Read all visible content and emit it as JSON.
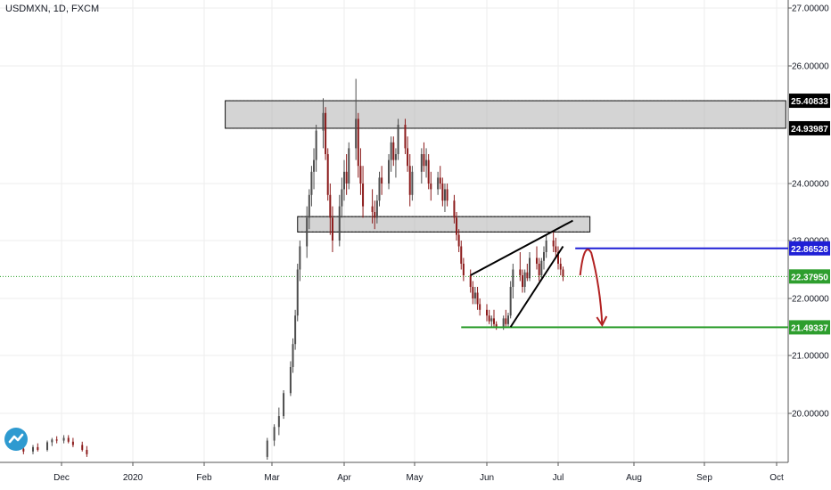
{
  "header": {
    "title": "USDMXN, 1D, FXCM"
  },
  "colors": {
    "up": "#4d4d4d",
    "down": "#8b1a1a",
    "grid": "#eeeeee",
    "axis_text": "#131722",
    "resistance_box": "#b0b0b0",
    "blue_line": "#1f1fd6",
    "green_line": "#2e9e2e",
    "current_line": "#27a027",
    "arrow": "#b22222",
    "wedge": "#000000"
  },
  "chart_data": {
    "type": "candlestick",
    "symbol": "USDMXN",
    "interval": "1D",
    "source": "FXCM",
    "title": "USDMXN, 1D, FXCM",
    "x_labels": [
      "Dec",
      "2020",
      "Feb",
      "Mar",
      "Apr",
      "May",
      "Jun",
      "Jul",
      "Aug",
      "Sep",
      "Oct"
    ],
    "y_ticks": [
      "27.00000",
      "26.00000",
      "24.00000",
      "23.00000",
      "22.00000",
      "21.00000",
      "20.00000"
    ],
    "ylim": [
      19.1,
      27.1
    ],
    "price_labels": [
      {
        "value": 25.40833,
        "text": "25.40833",
        "style": "dark"
      },
      {
        "value": 24.93987,
        "text": "24.93987",
        "style": "dark"
      },
      {
        "value": 22.86528,
        "text": "22.86528",
        "style": "blue"
      },
      {
        "value": 22.3795,
        "text": "22.37950",
        "style": "green"
      },
      {
        "value": 21.49337,
        "text": "21.49337",
        "style": "green"
      }
    ],
    "zones": [
      {
        "name": "resistance-zone",
        "low": 24.93987,
        "high": 25.40833,
        "from": "Feb 10",
        "to": "Oct 5"
      },
      {
        "name": "support-zone",
        "low": 23.15,
        "high": 23.42,
        "from": "Mar 12",
        "to": "Jul 14"
      }
    ],
    "levels": [
      {
        "name": "blue-level",
        "value": 22.86528,
        "from": "Jul 8",
        "to": "Oct 5"
      },
      {
        "name": "green-level",
        "value": 21.49337,
        "from": "May 21",
        "to": "Oct 5"
      },
      {
        "name": "current-price",
        "value": 22.3795
      }
    ],
    "wedge": {
      "upper": [
        [
          "May 25",
          22.4
        ],
        [
          "Jul 7",
          23.35
        ]
      ],
      "lower": [
        [
          "Jun 11",
          21.5
        ],
        [
          "Jul 3",
          22.9
        ]
      ]
    },
    "projection": {
      "from": [
        "Jul 10",
        22.4
      ],
      "peak": [
        "Jul 12",
        22.85
      ],
      "to": [
        "Jul 19",
        21.5
      ]
    },
    "ohlc": [
      [
        "Nov 15",
        19.35,
        19.4,
        19.25,
        19.3
      ],
      [
        "Nov 19",
        19.3,
        19.42,
        19.25,
        19.38
      ],
      [
        "Nov 21",
        19.38,
        19.45,
        19.3,
        19.33
      ],
      [
        "Nov 25",
        19.33,
        19.5,
        19.3,
        19.47
      ],
      [
        "Nov 27",
        19.47,
        19.55,
        19.4,
        19.52
      ],
      [
        "Nov 29",
        19.52,
        19.58,
        19.45,
        19.5
      ],
      [
        "Dec 2",
        19.5,
        19.6,
        19.45,
        19.55
      ],
      [
        "Dec 4",
        19.55,
        19.6,
        19.45,
        19.48
      ],
      [
        "Dec 6",
        19.48,
        19.55,
        19.38,
        19.42
      ],
      [
        "Dec 10",
        19.42,
        19.48,
        19.3,
        19.33
      ],
      [
        "Dec 12",
        19.33,
        19.4,
        19.2,
        19.25
      ],
      [
        "Feb 28",
        19.2,
        19.55,
        19.15,
        19.5
      ],
      [
        "Mar 2",
        19.5,
        19.8,
        19.4,
        19.75
      ],
      [
        "Mar 4",
        19.75,
        20.1,
        19.6,
        19.95
      ],
      [
        "Mar 6",
        19.95,
        20.4,
        19.9,
        20.35
      ],
      [
        "Mar 9",
        20.35,
        20.9,
        20.3,
        20.8
      ],
      [
        "Mar 10",
        20.8,
        21.3,
        20.7,
        21.2
      ],
      [
        "Mar 11",
        21.2,
        21.8,
        21.1,
        21.7
      ],
      [
        "Mar 12",
        21.7,
        22.6,
        21.6,
        22.5
      ],
      [
        "Mar 13",
        22.5,
        23.0,
        22.3,
        22.9
      ],
      [
        "Mar 16",
        22.9,
        23.6,
        22.7,
        23.4
      ],
      [
        "Mar 17",
        23.4,
        23.9,
        23.2,
        23.8
      ],
      [
        "Mar 18",
        23.8,
        24.3,
        23.6,
        24.2
      ],
      [
        "Mar 19",
        24.2,
        24.6,
        23.9,
        24.4
      ],
      [
        "Mar 20",
        24.4,
        25.0,
        24.2,
        24.9
      ],
      [
        "Mar 23",
        24.9,
        25.45,
        24.6,
        25.2
      ],
      [
        "Mar 24",
        25.2,
        25.3,
        24.4,
        24.5
      ],
      [
        "Mar 25",
        24.5,
        24.6,
        23.7,
        23.8
      ],
      [
        "Mar 26",
        23.8,
        24.0,
        23.1,
        23.4
      ],
      [
        "Mar 27",
        23.4,
        23.6,
        22.8,
        23.0
      ],
      [
        "Mar 30",
        23.0,
        23.8,
        22.9,
        23.6
      ],
      [
        "Mar 31",
        23.6,
        24.1,
        23.4,
        23.9
      ],
      [
        "Apr 1",
        23.9,
        24.4,
        23.7,
        24.2
      ],
      [
        "Apr 2",
        24.2,
        24.5,
        23.8,
        24.0
      ],
      [
        "Apr 3",
        24.0,
        24.7,
        23.9,
        24.6
      ],
      [
        "Apr 6",
        24.6,
        25.78,
        24.4,
        25.1
      ],
      [
        "Apr 7",
        25.1,
        25.2,
        24.1,
        24.3
      ],
      [
        "Apr 8",
        24.3,
        24.6,
        23.8,
        24.0
      ],
      [
        "Apr 9",
        24.0,
        24.3,
        23.4,
        23.6
      ],
      [
        "Apr 13",
        23.6,
        23.9,
        23.3,
        23.5
      ],
      [
        "Apr 14",
        23.5,
        23.7,
        23.2,
        23.4
      ],
      [
        "Apr 15",
        23.4,
        23.8,
        23.3,
        23.7
      ],
      [
        "Apr 16",
        23.7,
        24.2,
        23.6,
        24.1
      ],
      [
        "Apr 17",
        24.1,
        24.3,
        23.8,
        24.0
      ],
      [
        "Apr 20",
        24.0,
        24.5,
        23.9,
        24.4
      ],
      [
        "Apr 21",
        24.4,
        24.8,
        24.2,
        24.7
      ],
      [
        "Apr 22",
        24.7,
        24.8,
        24.3,
        24.4
      ],
      [
        "Apr 23",
        24.4,
        24.6,
        24.1,
        24.5
      ],
      [
        "Apr 24",
        24.5,
        25.1,
        24.4,
        25.0
      ],
      [
        "Apr 27",
        25.0,
        25.1,
        24.5,
        24.6
      ],
      [
        "Apr 28",
        24.6,
        24.8,
        24.2,
        24.3
      ],
      [
        "Apr 29",
        24.3,
        24.5,
        23.6,
        23.8
      ],
      [
        "Apr 30",
        23.8,
        24.3,
        23.7,
        24.2
      ],
      [
        "May 4",
        24.2,
        24.6,
        24.0,
        24.5
      ],
      [
        "May 5",
        24.5,
        24.7,
        24.2,
        24.3
      ],
      [
        "May 6",
        24.3,
        24.6,
        24.1,
        24.4
      ],
      [
        "May 7",
        24.4,
        24.5,
        23.9,
        24.0
      ],
      [
        "May 8",
        24.0,
        24.2,
        23.7,
        23.9
      ],
      [
        "May 11",
        23.9,
        24.2,
        23.8,
        24.1
      ],
      [
        "May 12",
        24.1,
        24.3,
        23.9,
        24.0
      ],
      [
        "May 13",
        24.0,
        24.1,
        23.6,
        23.7
      ],
      [
        "May 14",
        23.7,
        24.0,
        23.5,
        23.9
      ],
      [
        "May 15",
        23.9,
        24.0,
        23.6,
        23.7
      ],
      [
        "May 18",
        23.7,
        23.8,
        23.3,
        23.4
      ],
      [
        "May 19",
        23.4,
        23.5,
        23.0,
        23.1
      ],
      [
        "May 20",
        23.1,
        23.2,
        22.8,
        22.9
      ],
      [
        "May 21",
        22.9,
        23.0,
        22.5,
        22.6
      ],
      [
        "May 22",
        22.6,
        22.7,
        22.3,
        22.4
      ],
      [
        "May 25",
        22.4,
        22.5,
        22.1,
        22.2
      ],
      [
        "May 26",
        22.2,
        22.3,
        21.9,
        22.0
      ],
      [
        "May 27",
        22.0,
        22.2,
        21.9,
        22.1
      ],
      [
        "May 28",
        22.1,
        22.2,
        21.8,
        21.9
      ],
      [
        "May 29",
        21.9,
        22.0,
        21.7,
        21.8
      ],
      [
        "Jun 1",
        21.8,
        21.9,
        21.6,
        21.7
      ],
      [
        "Jun 2",
        21.7,
        21.8,
        21.55,
        21.6
      ],
      [
        "Jun 3",
        21.6,
        21.7,
        21.5,
        21.65
      ],
      [
        "Jun 4",
        21.65,
        21.8,
        21.5,
        21.55
      ],
      [
        "Jun 5",
        21.55,
        21.6,
        21.45,
        21.5
      ],
      [
        "Jun 8",
        21.5,
        21.7,
        21.45,
        21.65
      ],
      [
        "Jun 9",
        21.65,
        21.8,
        21.5,
        21.55
      ],
      [
        "Jun 10",
        21.55,
        21.75,
        21.5,
        21.7
      ],
      [
        "Jun 11",
        21.7,
        22.3,
        21.65,
        22.2
      ],
      [
        "Jun 12",
        22.2,
        22.6,
        22.0,
        22.5
      ],
      [
        "Jun 15",
        22.5,
        22.8,
        22.3,
        22.4
      ],
      [
        "Jun 16",
        22.4,
        22.5,
        22.1,
        22.2
      ],
      [
        "Jun 17",
        22.2,
        22.5,
        22.1,
        22.45
      ],
      [
        "Jun 18",
        22.45,
        22.6,
        22.3,
        22.35
      ],
      [
        "Jun 19",
        22.35,
        22.8,
        22.3,
        22.7
      ],
      [
        "Jun 22",
        22.7,
        22.9,
        22.5,
        22.6
      ],
      [
        "Jun 23",
        22.6,
        22.7,
        22.3,
        22.4
      ],
      [
        "Jun 24",
        22.4,
        22.7,
        22.35,
        22.65
      ],
      [
        "Jun 25",
        22.65,
        22.9,
        22.5,
        22.8
      ],
      [
        "Jun 26",
        22.8,
        23.1,
        22.7,
        23.0
      ],
      [
        "Jun 29",
        23.0,
        23.15,
        22.8,
        22.9
      ],
      [
        "Jun 30",
        22.9,
        23.05,
        22.7,
        22.8
      ],
      [
        "Jul 1",
        22.8,
        22.9,
        22.5,
        22.6
      ],
      [
        "Jul 2",
        22.6,
        22.7,
        22.4,
        22.5
      ],
      [
        "Jul 3",
        22.5,
        22.55,
        22.3,
        22.38
      ]
    ]
  }
}
